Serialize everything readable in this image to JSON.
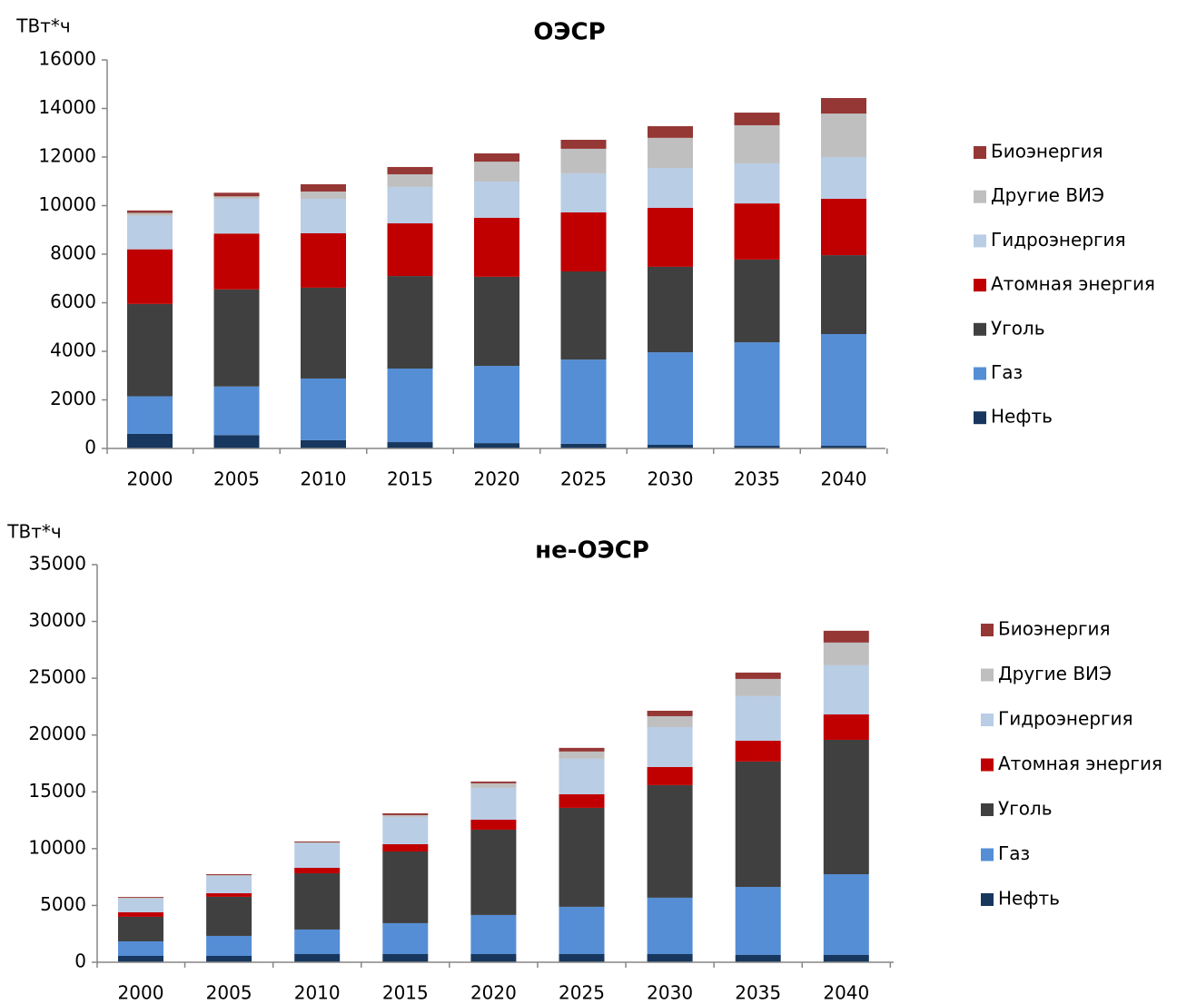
{
  "chart_data": [
    {
      "type": "stacked_bar",
      "title": "ОЭСР",
      "y_label": "ТВт*ч",
      "categories": [
        "2000",
        "2005",
        "2010",
        "2015",
        "2020",
        "2025",
        "2030",
        "2035",
        "2040"
      ],
      "ylim": [
        0,
        16000
      ],
      "yticks": [
        0,
        2000,
        4000,
        6000,
        8000,
        10000,
        12000,
        14000,
        16000
      ],
      "series": [
        {
          "name": "Нефть",
          "color": "#17375e",
          "values": [
            600,
            550,
            340,
            260,
            220,
            190,
            150,
            110,
            110
          ]
        },
        {
          "name": "Газ",
          "color": "#558ed5",
          "values": [
            1550,
            2000,
            2540,
            3030,
            3180,
            3470,
            3810,
            4260,
            4600
          ]
        },
        {
          "name": "Уголь",
          "color": "#404040",
          "values": [
            3800,
            4000,
            3740,
            3810,
            3670,
            3630,
            3520,
            3410,
            3250
          ]
        },
        {
          "name": "Атомная энергия",
          "color": "#c00000",
          "values": [
            2250,
            2300,
            2240,
            2170,
            2430,
            2430,
            2430,
            2310,
            2320
          ]
        },
        {
          "name": "Гидроэнергия",
          "color": "#b9cde5",
          "values": [
            1380,
            1430,
            1420,
            1500,
            1490,
            1610,
            1640,
            1650,
            1720
          ]
        },
        {
          "name": "Другие ВИЭ",
          "color": "#bfbfbf",
          "values": [
            120,
            100,
            300,
            520,
            820,
            1010,
            1240,
            1570,
            1790
          ]
        },
        {
          "name": "Биоэнергия",
          "color": "#953735",
          "values": [
            100,
            150,
            300,
            300,
            340,
            370,
            480,
            520,
            640
          ]
        }
      ]
    },
    {
      "type": "stacked_bar",
      "title": "не-ОЭСР",
      "y_label": "ТВт*ч",
      "categories": [
        "2000",
        "2005",
        "2010",
        "2015",
        "2020",
        "2025",
        "2030",
        "2035",
        "2040"
      ],
      "ylim": [
        0,
        35000
      ],
      "yticks": [
        0,
        5000,
        10000,
        15000,
        20000,
        25000,
        30000,
        35000
      ],
      "series": [
        {
          "name": "Нефть",
          "color": "#17375e",
          "values": [
            560,
            560,
            720,
            720,
            720,
            720,
            720,
            640,
            640
          ]
        },
        {
          "name": "Газ",
          "color": "#558ed5",
          "values": [
            1280,
            1760,
            2160,
            2720,
            3440,
            4160,
            4960,
            5990,
            7110
          ]
        },
        {
          "name": "Уголь",
          "color": "#404040",
          "values": [
            2160,
            3440,
            4950,
            6310,
            7510,
            8710,
            9910,
            11040,
            11830
          ]
        },
        {
          "name": "Атомная энергия",
          "color": "#c00000",
          "values": [
            400,
            320,
            480,
            640,
            880,
            1200,
            1600,
            1830,
            2240
          ]
        },
        {
          "name": "Гидроэнергия",
          "color": "#b9cde5",
          "values": [
            1200,
            1510,
            2160,
            2400,
            2800,
            3120,
            3510,
            3920,
            4320
          ]
        },
        {
          "name": "Другие ВИЭ",
          "color": "#bfbfbf",
          "values": [
            80,
            80,
            80,
            160,
            400,
            640,
            960,
            1520,
            2000
          ]
        },
        {
          "name": "Биоэнергия",
          "color": "#953735",
          "values": [
            70,
            80,
            80,
            160,
            160,
            320,
            480,
            560,
            1040
          ]
        }
      ]
    }
  ]
}
